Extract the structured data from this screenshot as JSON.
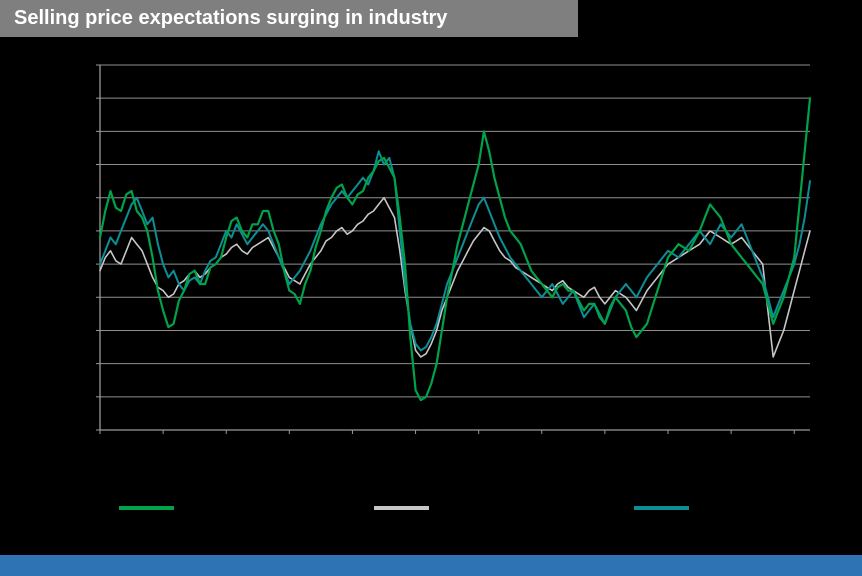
{
  "title": "Selling price expectations surging in industry",
  "colors": {
    "background": "#000000",
    "title_bar_bg": "#7f7f7f",
    "title_text": "#ffffff",
    "grid": "#8f8f8f",
    "axis": "#9a9a9a",
    "footer_bar": "#2e74b5",
    "series_green": "#00a24a",
    "series_grey": "#c6c6c6",
    "series_teal": "#0d8e96"
  },
  "legend": {
    "items": [
      {
        "label": "",
        "color": "#00a24a"
      },
      {
        "label": "",
        "color": "#c6c6c6"
      },
      {
        "label": "",
        "color": "#0d8e96"
      }
    ]
  },
  "chart_data": {
    "type": "line",
    "title": "Selling price expectations surging in industry",
    "xlabel": "",
    "ylabel": "",
    "x_start_year": 1999,
    "x_end_year": 2021.5,
    "x_step_months": 2,
    "x_tick_interval_years": 2,
    "ylim": [
      -20,
      35
    ],
    "grid": true,
    "grid_interval": 5,
    "legend_position": "bottom",
    "series": [
      {
        "name": "grey-line",
        "color": "#c6c6c6",
        "width": 1.6,
        "values": [
          4,
          6,
          7,
          5.5,
          5,
          7,
          9,
          8,
          7,
          5,
          3,
          1.5,
          1,
          0,
          0.5,
          2,
          2.5,
          3.5,
          4,
          3,
          3.5,
          4.5,
          5,
          6,
          6.5,
          7.5,
          8,
          7,
          6.5,
          7.5,
          8,
          8.5,
          9,
          7.5,
          6,
          4.5,
          3,
          2.5,
          2,
          3.5,
          5,
          6,
          7,
          8.5,
          9,
          10,
          10.5,
          9.5,
          10,
          11,
          11.5,
          12.5,
          13,
          14,
          15,
          13.5,
          12,
          7,
          1,
          -4,
          -8,
          -9,
          -8.5,
          -7,
          -5,
          -2,
          0,
          2,
          4,
          5.5,
          7,
          8.5,
          9.5,
          10.5,
          10,
          8.5,
          7,
          6,
          5.5,
          4.5,
          4,
          3.5,
          3,
          2.5,
          2,
          1.5,
          1,
          2,
          2.5,
          1.5,
          1,
          0.5,
          0,
          1,
          1.5,
          0,
          -1,
          0,
          1,
          0.5,
          0,
          -1,
          -2,
          -0.5,
          1,
          2,
          3,
          4,
          5,
          5.5,
          6,
          6.5,
          7,
          7.5,
          8,
          9,
          10,
          9.5,
          9,
          8.5,
          8,
          8.5,
          9,
          8,
          7,
          6,
          5,
          -2,
          -9,
          -7,
          -5,
          -2,
          1,
          4,
          7,
          10
        ]
      },
      {
        "name": "teal-line",
        "color": "#0d8e96",
        "width": 2,
        "values": [
          5,
          7,
          9,
          8,
          10,
          12,
          14,
          15,
          13,
          11,
          12,
          8,
          5,
          3,
          4,
          2,
          1,
          2.5,
          3,
          2,
          4,
          5.5,
          6,
          8,
          10,
          9,
          11,
          9.5,
          8,
          9,
          10,
          11,
          10,
          8,
          6,
          4,
          2,
          3,
          4,
          5.5,
          7,
          9,
          11,
          12.5,
          14,
          15,
          16,
          15,
          16,
          17,
          18,
          17,
          19,
          22,
          20,
          21,
          18,
          10,
          2,
          -4,
          -7,
          -8,
          -7.5,
          -6,
          -4,
          -1,
          2,
          4,
          6,
          8,
          10,
          12,
          14,
          15,
          13,
          11,
          9,
          7.5,
          6,
          5,
          4,
          3,
          2,
          1,
          0,
          1,
          2,
          0.5,
          -1,
          0,
          1,
          -1,
          -3,
          -2,
          -1,
          -2.5,
          -4,
          -2,
          0,
          1,
          2,
          1,
          0,
          1.5,
          3,
          4,
          5,
          6,
          7,
          6.5,
          6,
          7,
          8,
          9,
          10,
          9,
          8,
          9.5,
          11,
          10,
          9,
          10,
          11,
          9,
          7,
          5,
          3,
          0,
          -3,
          -1,
          1,
          3,
          5,
          8,
          12,
          17.5
        ]
      },
      {
        "name": "green-line",
        "color": "#00a24a",
        "width": 2.2,
        "values": [
          9,
          13,
          16,
          13.5,
          13,
          15.5,
          16,
          13,
          12,
          10,
          6,
          1,
          -2,
          -4.5,
          -4,
          -0.5,
          1,
          3.5,
          4,
          2,
          2,
          4.5,
          5,
          6,
          9,
          11.5,
          12,
          10,
          9,
          11,
          11,
          13,
          13,
          10,
          8,
          4,
          1,
          0.5,
          -1,
          2,
          4,
          7.5,
          10,
          13,
          15,
          16.5,
          17,
          15,
          14,
          15.5,
          16,
          18,
          19,
          20.5,
          21,
          19.5,
          18,
          12,
          5,
          -6,
          -14,
          -15.5,
          -15,
          -13,
          -10,
          -5,
          0,
          4,
          8,
          11,
          14,
          17,
          20,
          25,
          22,
          18,
          15,
          12,
          10,
          9,
          8,
          6,
          4,
          3,
          2,
          1,
          0,
          1.5,
          2,
          1,
          1,
          -0.5,
          -2,
          -1,
          -1,
          -3,
          -4,
          -1.5,
          0,
          -1,
          -2,
          -4.5,
          -6,
          -5,
          -4,
          -1.5,
          1,
          3.5,
          6,
          7,
          8,
          7.5,
          7,
          8.5,
          10,
          12,
          14,
          13,
          12,
          10,
          8,
          7,
          6,
          5,
          4,
          3,
          2,
          -1,
          -4,
          -2,
          0,
          3,
          6,
          14,
          22,
          30
        ]
      }
    ]
  }
}
